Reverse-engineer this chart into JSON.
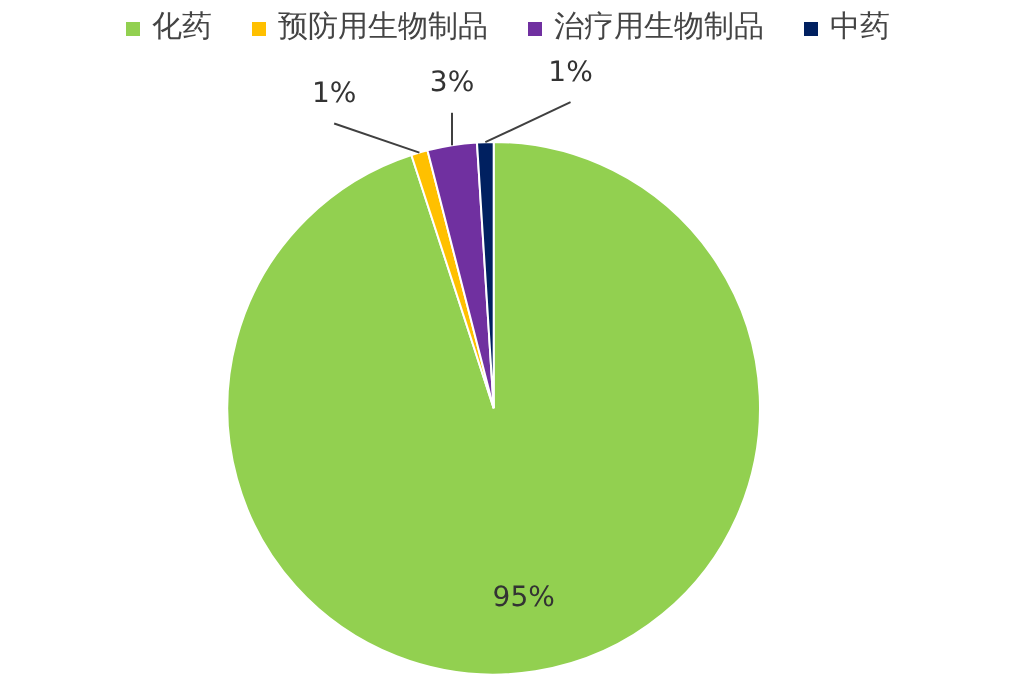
{
  "chart_data": {
    "type": "pie",
    "categories": [
      "化药",
      "预防用生物制品",
      "治疗用生物制品",
      "中药"
    ],
    "values": [
      95,
      1,
      3,
      1
    ],
    "colors": [
      "#92d050",
      "#ffc000",
      "#7030a0",
      "#002060"
    ],
    "value_labels": [
      "95%",
      "1%",
      "3%",
      "1%"
    ],
    "legend": "top"
  }
}
